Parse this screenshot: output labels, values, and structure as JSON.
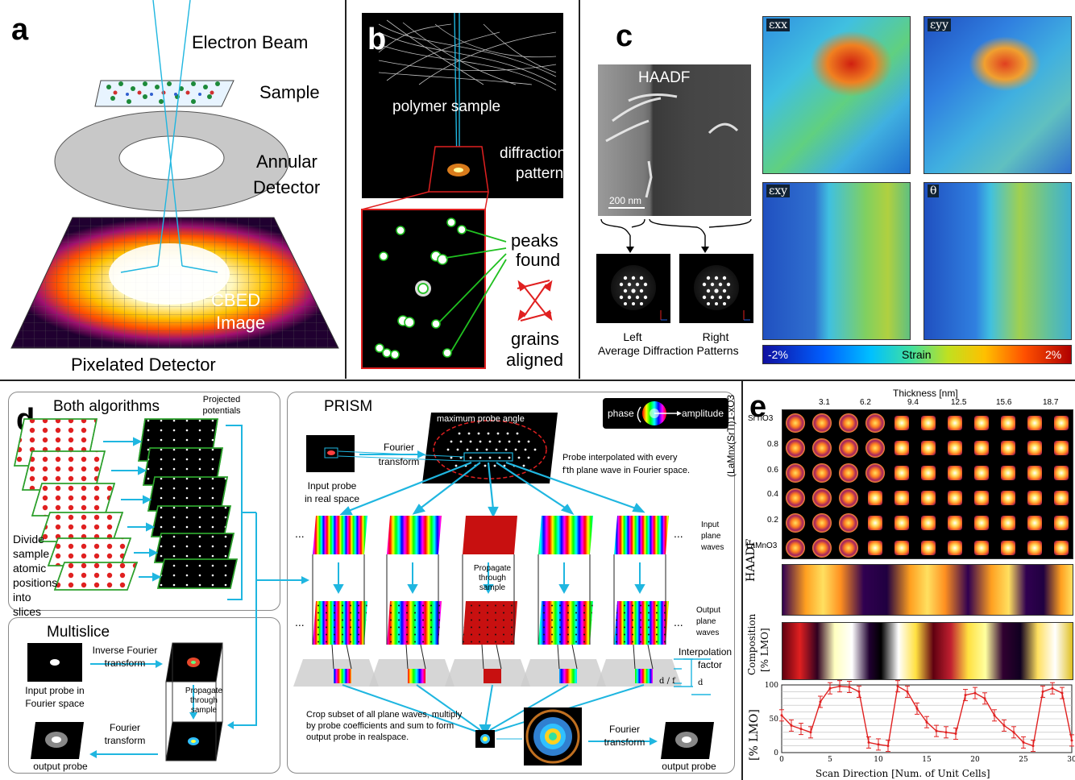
{
  "panel_letters": {
    "a": "a",
    "b": "b",
    "c": "c",
    "d": "d",
    "e": "e"
  },
  "panel_a": {
    "electron_beam": "Electron Beam",
    "sample": "Sample",
    "annular_line1": "Annular",
    "annular_line2": "Detector",
    "cbed_line1": "CBED",
    "cbed_line2": "Image",
    "pixelated": "Pixelated Detector"
  },
  "panel_b": {
    "polymer": "polymer sample",
    "diffraction_line1": "diffraction",
    "diffraction_line2": "pattern",
    "peaks_line1": "peaks",
    "peaks_line2": "found",
    "grains_line1": "grains",
    "grains_line2": "aligned"
  },
  "panel_c": {
    "haadf": "HAADF",
    "scalebar": "200 nm",
    "left": "Left",
    "right": "Right",
    "avg": "Average Diffraction Patterns",
    "exx": "εxx",
    "eyy": "εyy",
    "exy": "εxy",
    "theta": "θ",
    "cb_min": "-2%",
    "cb_mid": "Strain",
    "cb_max": "2%",
    "axis_x": "x",
    "axis_y": "y"
  },
  "panel_d": {
    "both": "Both algorithms",
    "projected_line1": "Projected",
    "projected_line2": "potentials",
    "divide": "Divide sample atomic positions into slices",
    "multislice": "Multislice",
    "inv_fourier_line1": "Inverse Fourier",
    "inv_fourier_line2": "transform",
    "input_probe_fourier_line1": "Input probe in",
    "input_probe_fourier_line2": "Fourier space",
    "propagate_line1": "Propagate",
    "propagate_line2": "through",
    "propagate_line3": "sample",
    "fourier_line1": "Fourier",
    "fourier_line2": "transform",
    "output_probe": "output probe",
    "prism": "PRISM",
    "phase": "phase",
    "amplitude": "amplitude",
    "max_probe": "maximum probe angle",
    "input_probe_real_line1": "Input probe",
    "input_probe_real_line2": "in real space",
    "probe_interp_line1": "Probe interpolated with every",
    "probe_interp_line2": "f'th plane wave in Fourier space.",
    "input_plane_line1": "Input",
    "input_plane_line2": "plane",
    "input_plane_line3": "waves",
    "output_plane_line1": "Output",
    "output_plane_line2": "plane",
    "output_plane_line3": "waves",
    "interp_line1": "Interpolation",
    "interp_line2": "factor",
    "d_over_f": "d / f",
    "d": "d",
    "crop": "Crop subset of all plane waves, multiply by probe coefficients and sum to form output probe in realspace.",
    "ellipsis": "..."
  },
  "panel_e": {
    "thickness": "Thickness [nm]",
    "ticks": [
      "3.1",
      "6.2",
      "9.4",
      "12.5",
      "15.6",
      "18.7"
    ],
    "rows": [
      "SrTiO3",
      "0.8",
      "0.6",
      "0.4",
      "0.2",
      "LaMnO3"
    ],
    "ylabel": "(LaMnx(SrTi)1-xO3",
    "haadf": "HAADF",
    "composition_line1": "Composition",
    "composition_line2": "[% LMO]",
    "plot_ylabel": "[% LMO]",
    "xlabel": "Scan Direction [Num. of Unit Cells]"
  },
  "chart_data": {
    "type": "line",
    "xlabel": "Scan Direction [Num. of Unit Cells]",
    "ylabel": "[% LMO]",
    "xlim": [
      0,
      30
    ],
    "ylim": [
      0,
      100
    ],
    "xticks": [
      0,
      5,
      10,
      15,
      20,
      25,
      30
    ],
    "yticks": [
      0,
      50,
      100
    ],
    "x": [
      0,
      1,
      2,
      3,
      4,
      5,
      6,
      7,
      8,
      9,
      10,
      11,
      12,
      13,
      14,
      15,
      16,
      17,
      18,
      19,
      20,
      21,
      22,
      23,
      24,
      25,
      26,
      27,
      28,
      29,
      30
    ],
    "values": [
      55,
      40,
      35,
      30,
      75,
      95,
      98,
      97,
      90,
      15,
      12,
      10,
      98,
      90,
      65,
      45,
      32,
      30,
      28,
      85,
      88,
      80,
      55,
      40,
      30,
      15,
      10,
      90,
      95,
      88,
      18
    ],
    "color": "#e02020"
  }
}
